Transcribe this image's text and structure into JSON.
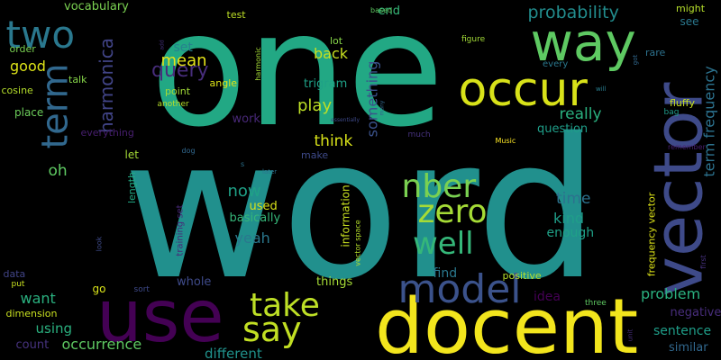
{
  "background": "#000000",
  "words": [
    {
      "text": "word",
      "color": "#21908d",
      "rotated": false
    },
    {
      "text": "one",
      "color": "#22a884",
      "rotated": false
    },
    {
      "text": "docent",
      "color": "#f2e51d",
      "rotated": false
    },
    {
      "text": "use",
      "color": "#440154",
      "rotated": false
    },
    {
      "text": "vector",
      "color": "#3e4a89",
      "rotated": true
    },
    {
      "text": "way",
      "color": "#5ec962",
      "rotated": false
    },
    {
      "text": "occur",
      "color": "#d8e219",
      "rotated": false
    },
    {
      "text": "two",
      "color": "#2a788e",
      "rotated": false
    },
    {
      "text": "term",
      "color": "#31688e",
      "rotated": true
    },
    {
      "text": "model",
      "color": "#3b528b",
      "rotated": false
    },
    {
      "text": "take",
      "color": "#bddf26",
      "rotated": false
    },
    {
      "text": "say",
      "color": "#c2df23",
      "rotated": false
    },
    {
      "text": "zero",
      "color": "#a5db36",
      "rotated": false
    },
    {
      "text": "nber",
      "color": "#7ad151",
      "rotated": false
    },
    {
      "text": "well",
      "color": "#35b779",
      "rotated": false
    },
    {
      "text": "harmonica",
      "color": "#414487",
      "rotated": true
    },
    {
      "text": "query",
      "color": "#472d7b",
      "rotated": false
    },
    {
      "text": "mean",
      "color": "#e5e419",
      "rotated": false
    },
    {
      "text": "probability",
      "color": "#228c8d",
      "rotated": false
    },
    {
      "text": "term frequency",
      "color": "#2c728e",
      "rotated": true
    },
    {
      "text": "something",
      "color": "#3b528b",
      "rotated": true
    },
    {
      "text": "vocabulary",
      "color": "#7ad151",
      "rotated": false
    },
    {
      "text": "test",
      "color": "#bddf26",
      "rotated": false
    },
    {
      "text": "end",
      "color": "#35b779",
      "rotated": false
    },
    {
      "text": "based",
      "color": "#5ec962",
      "rotated": false
    },
    {
      "text": "might",
      "color": "#b5de2b",
      "rotated": false
    },
    {
      "text": "see",
      "color": "#2a788e",
      "rotated": false
    },
    {
      "text": "set",
      "color": "#26828e",
      "rotated": false
    },
    {
      "text": "lot",
      "color": "#86d549",
      "rotated": false
    },
    {
      "text": "figure",
      "color": "#a2da37",
      "rotated": false
    },
    {
      "text": "order",
      "color": "#7ad151",
      "rotated": false
    },
    {
      "text": "good",
      "color": "#dde318",
      "rotated": false
    },
    {
      "text": "back",
      "color": "#c8e020",
      "rotated": false
    },
    {
      "text": "got",
      "color": "#31688e",
      "rotated": true
    },
    {
      "text": "rare",
      "color": "#2c728e",
      "rotated": false
    },
    {
      "text": "talk",
      "color": "#86d549",
      "rotated": false
    },
    {
      "text": "every",
      "color": "#2a788e",
      "rotated": false
    },
    {
      "text": "cosine",
      "color": "#b5de2b",
      "rotated": false
    },
    {
      "text": "angle",
      "color": "#dde318",
      "rotated": false
    },
    {
      "text": "harmonic",
      "color": "#a5db36",
      "rotated": true
    },
    {
      "text": "trigram",
      "color": "#1fa187",
      "rotated": false
    },
    {
      "text": "point",
      "color": "#a2da37",
      "rotated": false
    },
    {
      "text": "add",
      "color": "#46327e",
      "rotated": true
    },
    {
      "text": "will",
      "color": "#287d8e",
      "rotated": false
    },
    {
      "text": "another",
      "color": "#b5de2b",
      "rotated": false
    },
    {
      "text": "place",
      "color": "#6ccd5a",
      "rotated": false
    },
    {
      "text": "play",
      "color": "#bddf26",
      "rotated": false
    },
    {
      "text": "really",
      "color": "#2ab07f",
      "rotated": false
    },
    {
      "text": "fluffy",
      "color": "#c8e020",
      "rotated": false
    },
    {
      "text": "bag",
      "color": "#1f9a8a",
      "rotated": false
    },
    {
      "text": "work",
      "color": "#482878",
      "rotated": false
    },
    {
      "text": "everything",
      "color": "#481f70",
      "rotated": false
    },
    {
      "text": "essentially",
      "color": "#3e4a89",
      "rotated": false
    },
    {
      "text": "question",
      "color": "#1f9e89",
      "rotated": false
    },
    {
      "text": "many",
      "color": "#31688e",
      "rotated": true
    },
    {
      "text": "much",
      "color": "#46327e",
      "rotated": false
    },
    {
      "text": "Music",
      "color": "#fde725",
      "rotated": false
    },
    {
      "text": "remember",
      "color": "#481f70",
      "rotated": false
    },
    {
      "text": "think",
      "color": "#d8e219",
      "rotated": false
    },
    {
      "text": "dog",
      "color": "#31688e",
      "rotated": false
    },
    {
      "text": "make",
      "color": "#3e4a89",
      "rotated": false
    },
    {
      "text": "let",
      "color": "#a5db36",
      "rotated": false
    },
    {
      "text": "oh",
      "color": "#5ec962",
      "rotated": false
    },
    {
      "text": "length",
      "color": "#22a884",
      "rotated": true
    },
    {
      "text": "s",
      "color": "#2c728e",
      "rotated": false
    },
    {
      "text": "later",
      "color": "#2c728e",
      "rotated": false
    },
    {
      "text": "time",
      "color": "#2c728e",
      "rotated": false
    },
    {
      "text": "now",
      "color": "#1fa187",
      "rotated": false
    },
    {
      "text": "used",
      "color": "#d8e219",
      "rotated": false
    },
    {
      "text": "kind",
      "color": "#1f9e89",
      "rotated": false
    },
    {
      "text": "basically",
      "color": "#35b779",
      "rotated": false
    },
    {
      "text": "enough",
      "color": "#1fa187",
      "rotated": false
    },
    {
      "text": "vector space",
      "color": "#b5de2b",
      "rotated": true
    },
    {
      "text": "yeah",
      "color": "#2a788e",
      "rotated": false
    },
    {
      "text": "frequency vector",
      "color": "#dde318",
      "rotated": true
    },
    {
      "text": "information",
      "color": "#c8e020",
      "rotated": true
    },
    {
      "text": "training set",
      "color": "#482878",
      "rotated": true
    },
    {
      "text": "look",
      "color": "#3e4a89",
      "rotated": true
    },
    {
      "text": "first",
      "color": "#46327e",
      "rotated": true
    },
    {
      "text": "unit",
      "color": "#472d7b",
      "rotated": true
    },
    {
      "text": "data",
      "color": "#414487",
      "rotated": false
    },
    {
      "text": "put",
      "color": "#c8e020",
      "rotated": false
    },
    {
      "text": "find",
      "color": "#2a788e",
      "rotated": false
    },
    {
      "text": "positive",
      "color": "#b5de2b",
      "rotated": false
    },
    {
      "text": "whole",
      "color": "#3e4a89",
      "rotated": false
    },
    {
      "text": "things",
      "color": "#a5db36",
      "rotated": false
    },
    {
      "text": "go",
      "color": "#d8e219",
      "rotated": false
    },
    {
      "text": "sort",
      "color": "#3e4a89",
      "rotated": false
    },
    {
      "text": "want",
      "color": "#2ab07f",
      "rotated": false
    },
    {
      "text": "idea",
      "color": "#440154",
      "rotated": false
    },
    {
      "text": "problem",
      "color": "#2ab07f",
      "rotated": false
    },
    {
      "text": "three",
      "color": "#5ec962",
      "rotated": false
    },
    {
      "text": "dimension",
      "color": "#c8e020",
      "rotated": false
    },
    {
      "text": "using",
      "color": "#2ab07f",
      "rotated": false
    },
    {
      "text": "negative",
      "color": "#472d7b",
      "rotated": false
    },
    {
      "text": "count",
      "color": "#46327e",
      "rotated": false
    },
    {
      "text": "occurrence",
      "color": "#5ec962",
      "rotated": false
    },
    {
      "text": "sentence",
      "color": "#1f9e89",
      "rotated": false
    },
    {
      "text": "different",
      "color": "#20928c",
      "rotated": false
    },
    {
      "text": "similar",
      "color": "#31688e",
      "rotated": false
    }
  ]
}
